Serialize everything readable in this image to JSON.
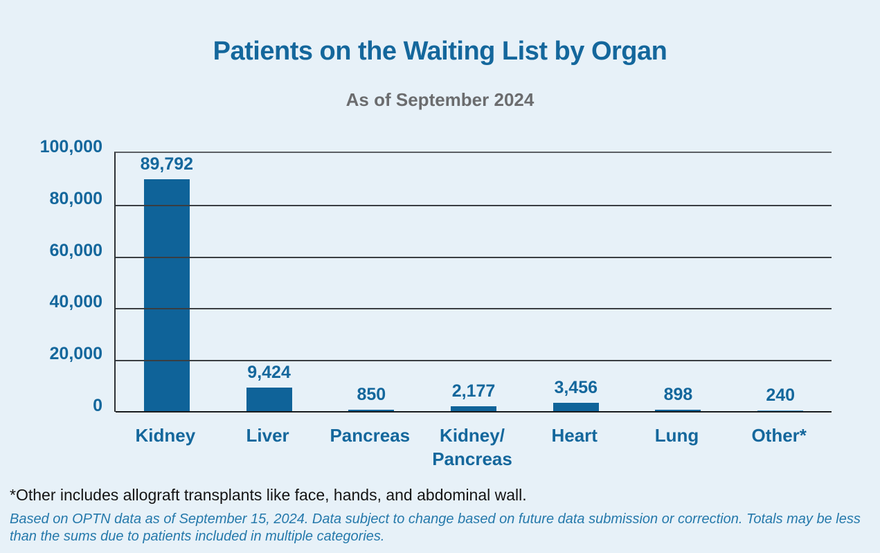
{
  "page": {
    "background_color": "#e7f1f8"
  },
  "header": {
    "title": "Patients on the Waiting List by Organ",
    "subtitle": "As of September 2024"
  },
  "chart_data": {
    "type": "bar",
    "title": "Patients on the Waiting List by Organ",
    "subtitle": "As of September 2024",
    "categories": [
      "Kidney",
      "Liver",
      "Pancreas",
      "Kidney/Pancreas",
      "Heart",
      "Lung",
      "Other*"
    ],
    "category_label_lines": [
      [
        "Kidney"
      ],
      [
        "Liver"
      ],
      [
        "Pancreas"
      ],
      [
        "Kidney/",
        "Pancreas"
      ],
      [
        "Heart"
      ],
      [
        "Lung"
      ],
      [
        "Other*"
      ]
    ],
    "values": [
      89792,
      9424,
      850,
      2177,
      3456,
      898,
      240
    ],
    "value_labels": [
      "89,792",
      "9,424",
      "850",
      "2,177",
      "3,456",
      "898",
      "240"
    ],
    "bar_colors": [
      "#0f6399",
      "#0f6399",
      "#0f6399",
      "#0f6399",
      "#0f6399",
      "#0f6399",
      "#4f9ac9"
    ],
    "xlabel": "",
    "ylabel": "",
    "ylim": [
      0,
      100000
    ],
    "yticks": [
      0,
      20000,
      40000,
      60000,
      80000,
      100000
    ],
    "ytick_labels": [
      "0",
      "20,000",
      "40,000",
      "60,000",
      "80,000",
      "100,000"
    ],
    "grid": true,
    "legend": false,
    "text_color": "#14679c",
    "gridline_color": "#3a3e42"
  },
  "footnotes": {
    "other_note": "*Other includes allograft transplants like face, hands, and abdominal wall.",
    "source_note": "Based on OPTN data as of September 15, 2024. Data subject to change based on future data submission or correction. Totals may be less than the sums due to patients included in multiple categories."
  }
}
